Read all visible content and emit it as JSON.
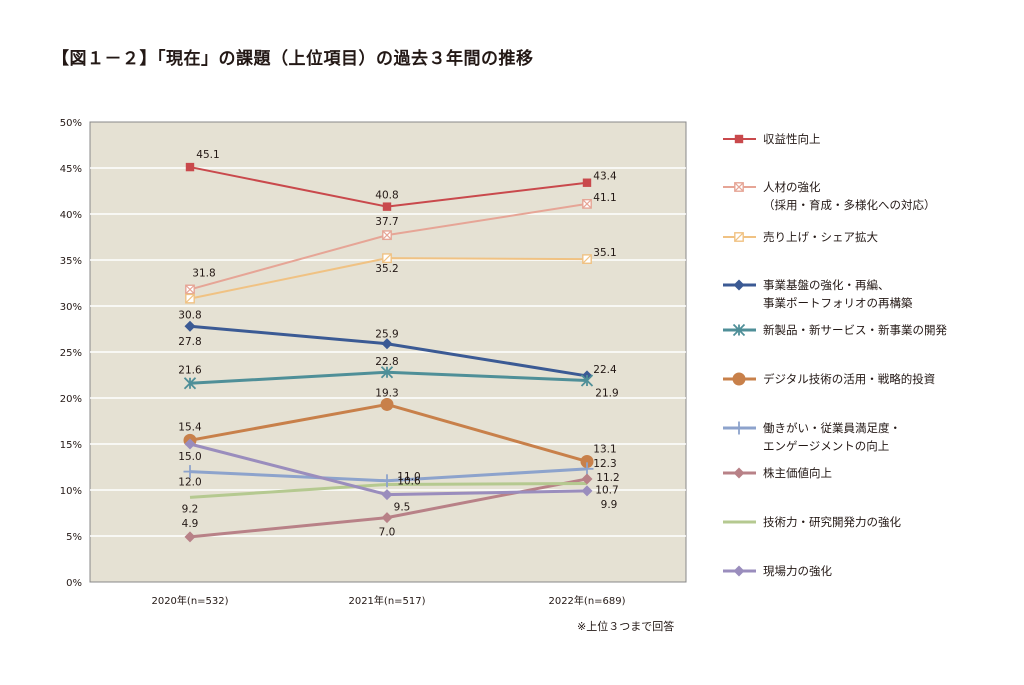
{
  "title": "【図１－２】「現在」の課題（上位項目）の過去３年間の推移",
  "footnote": "※上位３つまで回答",
  "chart_data": {
    "type": "line",
    "title": "【図１－２】「現在」の課題（上位項目）の過去３年間の推移",
    "categories": [
      "2020年(n=532)",
      "2021年(n=517)",
      "2022年(n=689)"
    ],
    "ylim": [
      0,
      50
    ],
    "yticks": [
      0,
      5,
      10,
      15,
      20,
      25,
      30,
      35,
      40,
      45,
      50
    ],
    "ytick_labels": [
      "0%",
      "5%",
      "10%",
      "15%",
      "20%",
      "25%",
      "30%",
      "35%",
      "40%",
      "45%",
      "50%"
    ],
    "grid": true,
    "legend_position": "right",
    "series": [
      {
        "name": "収益性向上",
        "legend_lines": [
          "収益性向上"
        ],
        "values": [
          45.1,
          40.8,
          43.4
        ],
        "labels": [
          "45.1",
          "40.8",
          "43.4"
        ],
        "color": "#c9494c",
        "marker": "square",
        "width": 2
      },
      {
        "name": "人材の強化（採用・育成・多様化への対応）",
        "legend_lines": [
          "人材の強化",
          "（採用・育成・多様化への対応）"
        ],
        "values": [
          31.8,
          37.7,
          41.1
        ],
        "labels": [
          "31.8",
          "37.7",
          "41.1"
        ],
        "color": "#e6a596",
        "marker": "xsquare",
        "width": 2
      },
      {
        "name": "売り上げ・シェア拡大",
        "legend_lines": [
          "売り上げ・シェア拡大"
        ],
        "values": [
          30.8,
          35.2,
          35.1
        ],
        "labels": [
          "30.8",
          "35.2",
          "35.1"
        ],
        "color": "#f0c283",
        "marker": "slashsquare",
        "width": 2
      },
      {
        "name": "事業基盤の強化・再編、事業ポートフォリオの再構築",
        "legend_lines": [
          "事業基盤の強化・再編、",
          "事業ポートフォリオの再構築"
        ],
        "values": [
          27.8,
          25.9,
          22.4
        ],
        "labels": [
          "27.8",
          "25.9",
          "22.4"
        ],
        "color": "#3b5a94",
        "marker": "diamond",
        "width": 3
      },
      {
        "name": "新製品・新サービス・新事業の開発",
        "legend_lines": [
          "新製品・新サービス・新事業の開発"
        ],
        "values": [
          21.6,
          22.8,
          21.9
        ],
        "labels": [
          "21.6",
          "22.8",
          "21.9"
        ],
        "color": "#4f8f98",
        "marker": "asterisk",
        "width": 3
      },
      {
        "name": "デジタル技術の活用・戦略的投資",
        "legend_lines": [
          "デジタル技術の活用・戦略的投資"
        ],
        "values": [
          15.4,
          19.3,
          13.1
        ],
        "labels": [
          "15.4",
          "19.3",
          "13.1"
        ],
        "color": "#c8804a",
        "marker": "circle",
        "width": 3
      },
      {
        "name": "働きがい・従業員満足度・エンゲージメントの向上",
        "legend_lines": [
          "働きがい・従業員満足度・",
          "エンゲージメントの向上"
        ],
        "values": [
          12.0,
          11.0,
          12.3
        ],
        "labels": [
          "12.0",
          "11.0",
          "12.3"
        ],
        "color": "#8da3cc",
        "marker": "plus",
        "width": 3
      },
      {
        "name": "株主価値向上",
        "legend_lines": [
          "株主価値向上"
        ],
        "values": [
          4.9,
          7.0,
          11.2
        ],
        "labels": [
          "4.9",
          "7.0",
          "11.2"
        ],
        "color": "#b88187",
        "marker": "diamond",
        "width": 3
      },
      {
        "name": "技術力・研究開発力の強化",
        "legend_lines": [
          "技術力・研究開発力の強化"
        ],
        "values": [
          9.2,
          10.6,
          10.7
        ],
        "labels": [
          "9.2",
          "10.6",
          "10.7"
        ],
        "color": "#b5c990",
        "marker": "none",
        "width": 3
      },
      {
        "name": "現場力の強化",
        "legend_lines": [
          "現場力の強化"
        ],
        "values": [
          15.0,
          9.5,
          9.9
        ],
        "labels": [
          "15.0",
          "9.5",
          "9.9"
        ],
        "color": "#9a8dbd",
        "marker": "diamond",
        "width": 3
      }
    ]
  },
  "colors": {
    "plot_background": "#e5e1d3",
    "grid": "#ffffff",
    "axis": "#888888"
  }
}
